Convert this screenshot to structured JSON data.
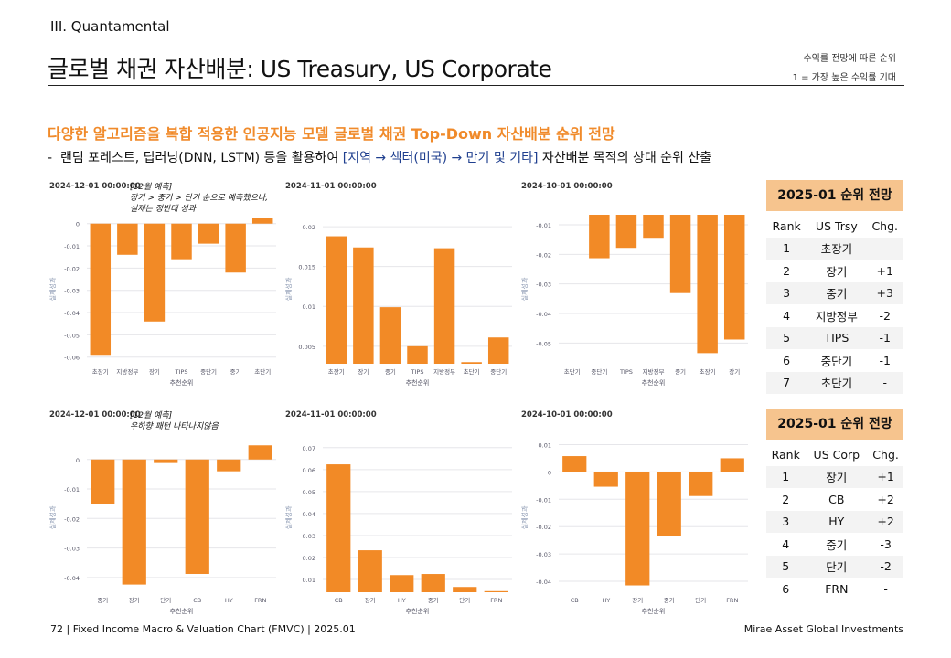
{
  "header": {
    "section": "III. Quantamental",
    "title": "글로벌 채권 자산배분: US Treasury, US Corporate",
    "notes": [
      "수익률 전망에 따른 순위",
      "1 = 가장 높은 수익률 기대"
    ]
  },
  "headline": "다양한 알고리즘을 복합 적용한 인공지능 모델 글로벌 채권 Top-Down 자산배분 순위 전망",
  "bullet": {
    "mark": "-",
    "before": "랜덤 포레스트, 딥러닝(DNN, LSTM) 등을 활용하여",
    "highlight": "[지역 → 섹터(미국) → 만기 및 기타]",
    "after": "자산배분 목적의 상대 순위 산출"
  },
  "chart_data": [
    {
      "type": "bar",
      "title": "2024-12-01 00:00:00",
      "annotation": [
        "[12월 예측]",
        "장기 > 중기 > 단기 순으로 예측했으나,",
        "실제는 정반대 성과"
      ],
      "categories": [
        "초장기",
        "지방정부",
        "장기",
        "TIPS",
        "중단기",
        "중기",
        "초단기"
      ],
      "values": [
        -0.059,
        -0.014,
        -0.044,
        -0.016,
        -0.009,
        -0.022,
        0.0025
      ],
      "ylim": [
        -0.063,
        0.004
      ],
      "yticks": [
        0,
        -0.01,
        -0.02,
        -0.03,
        -0.04,
        -0.05,
        -0.06
      ],
      "x_label": "추천순위",
      "y_label": "실제성과",
      "color": "#f28a26",
      "grid": true
    },
    {
      "type": "bar",
      "title": "2024-11-01 00:00:00",
      "categories": [
        "초장기",
        "장기",
        "중기",
        "TIPS",
        "지방정부",
        "초단기",
        "중단기"
      ],
      "values": [
        0.0188,
        0.0174,
        0.0099,
        0.005,
        0.0173,
        0.003,
        0.0061
      ],
      "ylim": [
        0.0028,
        0.0215
      ],
      "yticks": [
        0.005,
        0.01,
        0.015,
        0.02
      ],
      "x_label": "추천순위",
      "y_label": "실제성과",
      "color": "#f28a26",
      "grid": true
    },
    {
      "type": "bar",
      "title": "2024-10-01 00:00:00",
      "categories": [
        "초단기",
        "중단기",
        "TIPS",
        "지방정부",
        "중기",
        "초장기",
        "장기"
      ],
      "values": [
        -0.006,
        -0.0213,
        -0.0178,
        -0.0144,
        -0.0331,
        -0.0534,
        -0.0488
      ],
      "ylim": [
        -0.057,
        -0.0066
      ],
      "yticks": [
        -0.01,
        -0.02,
        -0.03,
        -0.04,
        -0.05
      ],
      "x_label": "추천순위",
      "y_label": "실제성과",
      "color": "#f28a26",
      "grid": true
    },
    {
      "type": "bar",
      "title": "2024-12-01 00:00:00",
      "annotation": [
        "[12월 예측]",
        "우하향 패턴 나타나지않음"
      ],
      "categories": [
        "중기",
        "장기",
        "단기",
        "CB",
        "HY",
        "FRN"
      ],
      "values": [
        -0.0152,
        -0.0424,
        -0.0012,
        -0.0388,
        -0.004,
        0.0048
      ],
      "ylim": [
        -0.045,
        0.0055
      ],
      "yticks": [
        0,
        -0.01,
        -0.02,
        -0.03,
        -0.04
      ],
      "x_label": "추천순위",
      "y_label": "실제성과",
      "color": "#f28a26",
      "grid": true
    },
    {
      "type": "bar",
      "title": "2024-11-01 00:00:00",
      "categories": [
        "CB",
        "장기",
        "HY",
        "중기",
        "단기",
        "FRN"
      ],
      "values": [
        0.0624,
        0.0233,
        0.012,
        0.0125,
        0.0066,
        0.0047
      ],
      "ylim": [
        0.0042,
        0.072
      ],
      "yticks": [
        0.01,
        0.02,
        0.03,
        0.04,
        0.05,
        0.06,
        0.07
      ],
      "x_label": "추천순위",
      "y_label": "실제성과",
      "color": "#f28a26",
      "grid": true
    },
    {
      "type": "bar",
      "title": "2024-10-01 00:00:00",
      "categories": [
        "CB",
        "HY",
        "장기",
        "중기",
        "단기",
        "FRN"
      ],
      "values": [
        0.0058,
        -0.0054,
        -0.0415,
        -0.0235,
        -0.0088,
        0.005
      ],
      "ylim": [
        -0.044,
        0.0105
      ],
      "yticks": [
        0.01,
        0,
        -0.01,
        -0.02,
        -0.03,
        -0.04
      ],
      "x_label": "추천순위",
      "y_label": "실제성과",
      "color": "#f28a26",
      "grid": true
    }
  ],
  "tables": [
    {
      "title": "2025-01 순위 전망",
      "columns": [
        "Rank",
        "US Trsy",
        "Chg."
      ],
      "rows": [
        [
          "1",
          "초장기",
          "-"
        ],
        [
          "2",
          "장기",
          "+1"
        ],
        [
          "3",
          "중기",
          "+3"
        ],
        [
          "4",
          "지방정부",
          "-2"
        ],
        [
          "5",
          "TIPS",
          "-1"
        ],
        [
          "6",
          "중단기",
          "-1"
        ],
        [
          "7",
          "초단기",
          "-"
        ]
      ]
    },
    {
      "title": "2025-01 순위 전망",
      "columns": [
        "Rank",
        "US Corp",
        "Chg."
      ],
      "rows": [
        [
          "1",
          "장기",
          "+1"
        ],
        [
          "2",
          "CB",
          "+2"
        ],
        [
          "3",
          "HY",
          "+2"
        ],
        [
          "4",
          "중기",
          "-3"
        ],
        [
          "5",
          "단기",
          "-2"
        ],
        [
          "6",
          "FRN",
          "-"
        ]
      ]
    }
  ],
  "footer": {
    "left": "72 | Fixed Income Macro & Valuation Chart (FMVC) | 2025.01",
    "right": "Mirae Asset Global Investments"
  }
}
